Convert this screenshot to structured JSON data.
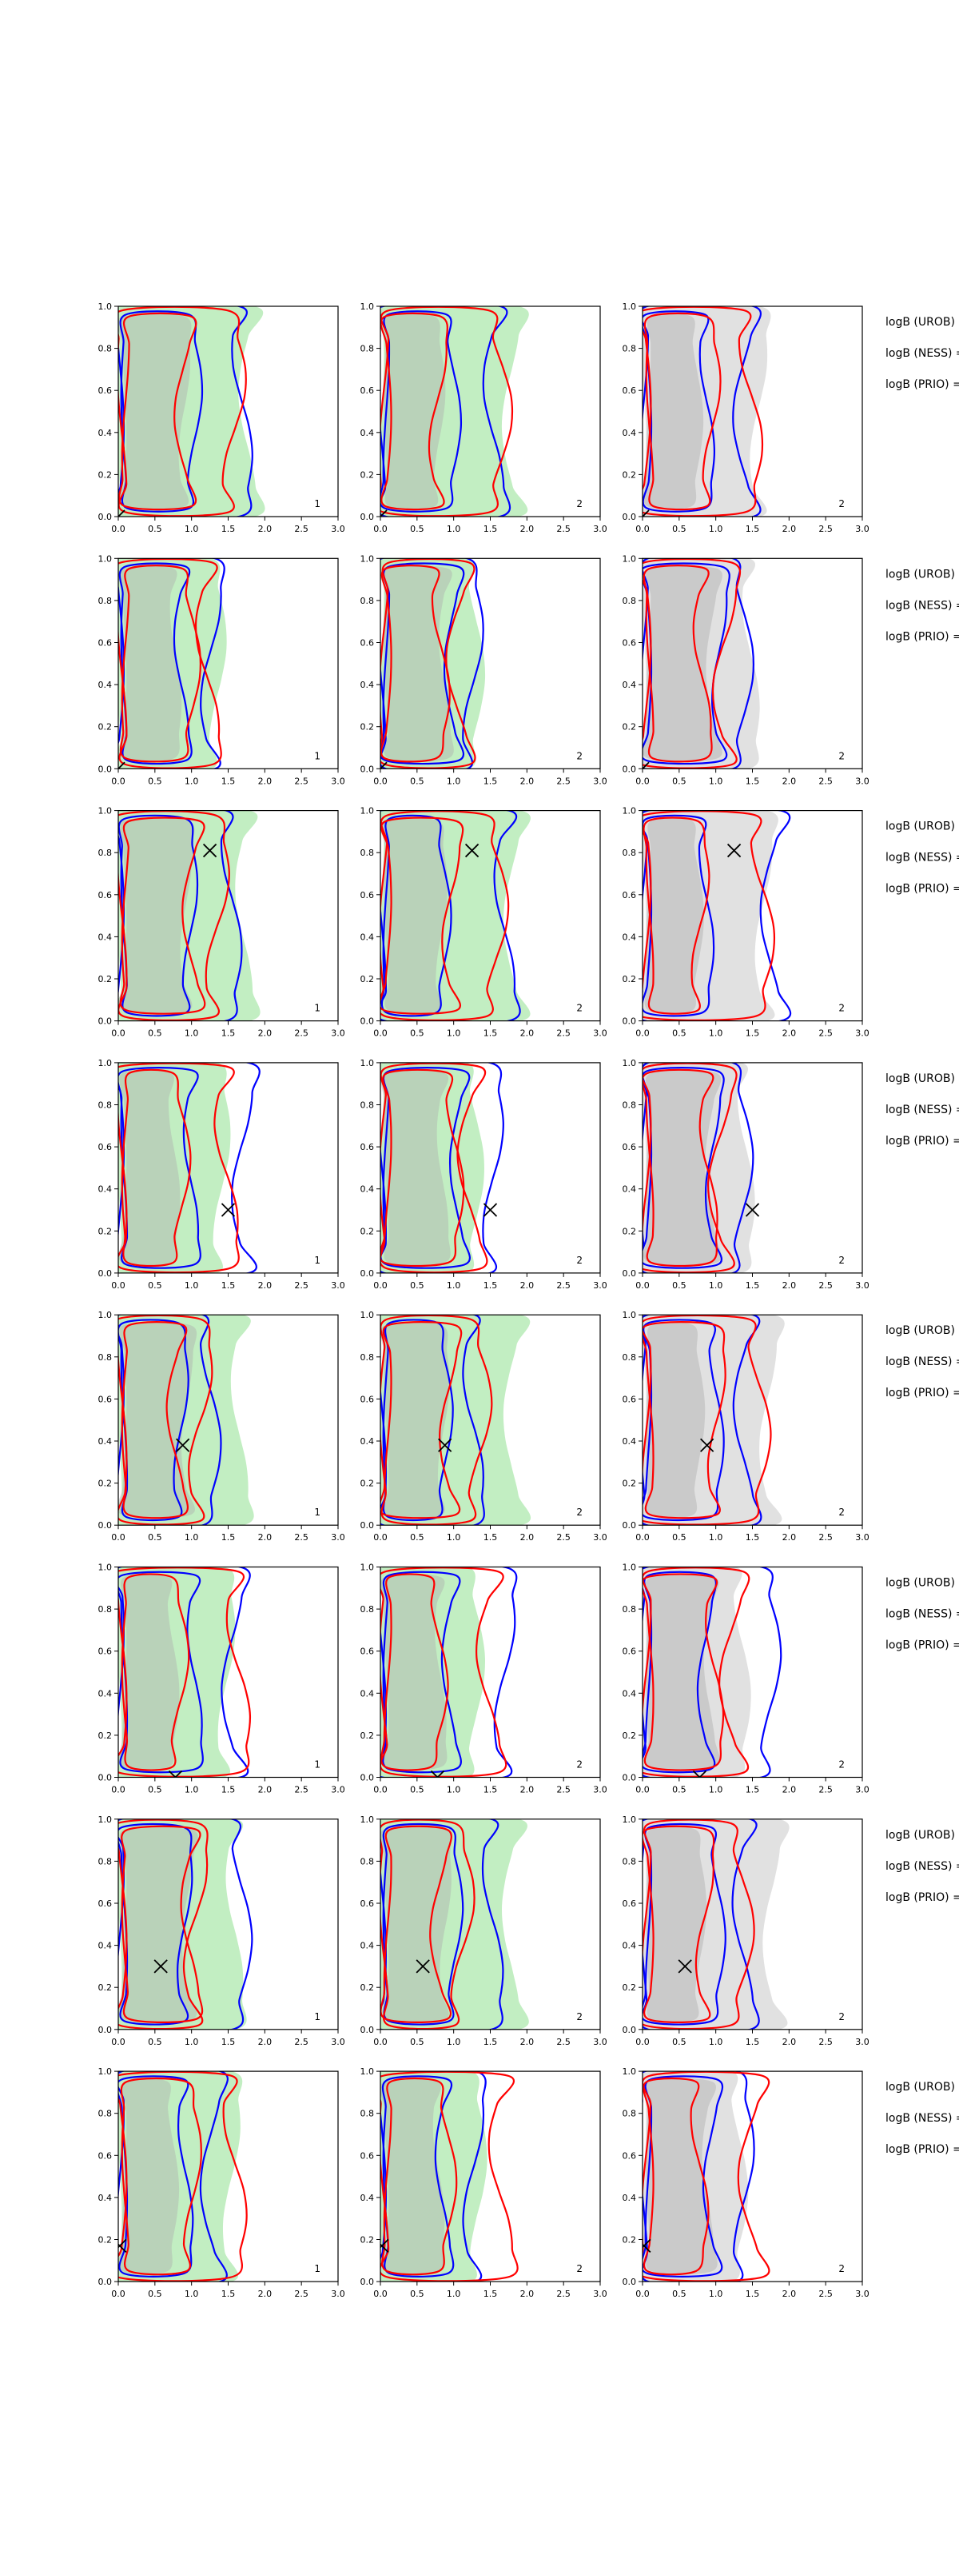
{
  "chart_data": {
    "type": "contour-grid",
    "title": "",
    "layout": {
      "rows": 8,
      "cols": 3
    },
    "axes": {
      "xlim": [
        0.0,
        3.0
      ],
      "ylim": [
        0.0,
        1.0
      ],
      "x_ticks": [
        "0.0",
        "0.5",
        "1.0",
        "1.5",
        "2.0",
        "2.5",
        "3.0"
      ],
      "y_ticks": [
        "0.0",
        "0.2",
        "0.4",
        "0.6",
        "0.8",
        "1.0"
      ],
      "grid": false
    },
    "colors": {
      "blue_contour": "#0000ff",
      "red_contour": "#ff0000",
      "green_fill": "#90e090",
      "gray_fill": "#c8c8c8",
      "marker": "#000000"
    },
    "corner_labels": [
      "1",
      "2",
      "2"
    ],
    "side_labels": [
      "logB (UROB) =",
      "logB (NESS) =",
      "logB (PRIO) ="
    ],
    "rows": [
      {
        "marker": {
          "x": 0.0,
          "y": 0.0
        }
      },
      {
        "marker": {
          "x": 0.0,
          "y": 0.0
        }
      },
      {
        "marker": {
          "x": 1.25,
          "y": 0.81
        }
      },
      {
        "marker": {
          "x": 1.5,
          "y": 0.3
        }
      },
      {
        "marker": {
          "x": 0.88,
          "y": 0.38
        }
      },
      {
        "marker": {
          "x": 0.78,
          "y": 0.0
        }
      },
      {
        "marker": {
          "x": 0.58,
          "y": 0.3
        }
      },
      {
        "marker": {
          "x": 0.02,
          "y": 0.17
        }
      }
    ]
  }
}
